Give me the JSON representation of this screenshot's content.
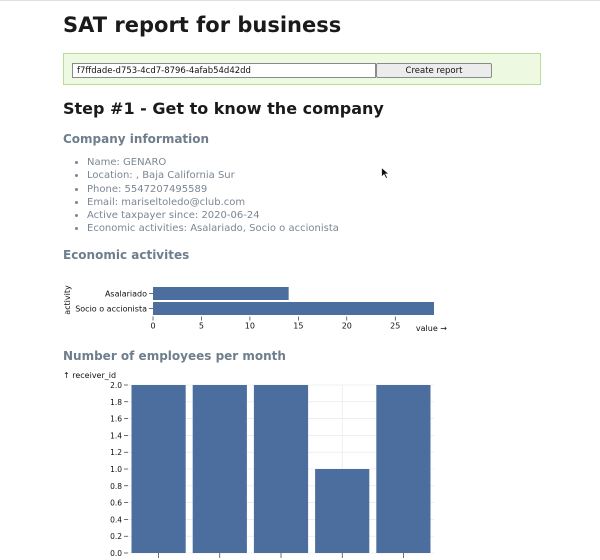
{
  "title": "SAT report for business",
  "report": {
    "input_value": "f7ffdade-d753-4cd7-8796-4afab54d42dd",
    "button_label": "Create report"
  },
  "step_title": "Step #1 - Get to know the company",
  "company": {
    "heading": "Company information",
    "items": [
      "Name: GENARO",
      "Location: , Baja California Sur",
      "Phone: 5547207495589",
      "Email: mariseltoledo@club.com",
      "Active taxpayer since: 2020-06-24",
      "Economic activities: Asalariado, Socio o accionista"
    ]
  },
  "activities_heading": "Economic activites",
  "employees_heading": "Number of employees per month",
  "colors": {
    "bar": "#4c6e9e",
    "heading": "#6f7e8c"
  },
  "chart_data": [
    {
      "type": "bar",
      "orientation": "horizontal",
      "categories": [
        "Asalariado",
        "Socio o accionista"
      ],
      "values": [
        14,
        29
      ],
      "xlabel": "value →",
      "ylabel": "activity",
      "xticks": [
        "0",
        "5",
        "10",
        "15",
        "20",
        "25"
      ],
      "xlim": [
        0,
        29
      ]
    },
    {
      "type": "bar",
      "categories": [
        "",
        "",
        "",
        "",
        ""
      ],
      "values": [
        2,
        2,
        2,
        1,
        2
      ],
      "ylabel": "↑ receiver_id",
      "yticks": [
        "0.0",
        "0.2",
        "0.4",
        "0.6",
        "0.8",
        "1.0",
        "1.2",
        "1.4",
        "1.6",
        "1.8",
        "2.0"
      ],
      "ylim": [
        0,
        2
      ],
      "grid": true
    }
  ]
}
